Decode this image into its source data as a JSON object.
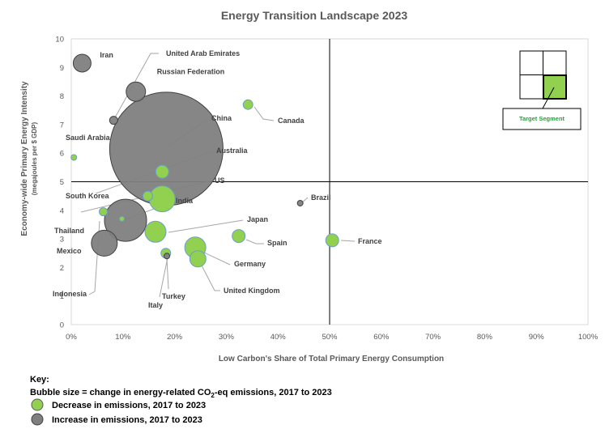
{
  "chart_data": {
    "type": "scatter",
    "title": "Energy Transition Landscape 2023",
    "xlabel": "Low Carbon's Share of Total Primary Energy Consumption",
    "ylabel": "Economy-wide Primary Energy Intensity",
    "ylabel_sub": "(megajoules per $ GDP)",
    "xlim": [
      0,
      100
    ],
    "ylim": [
      0,
      10
    ],
    "x_ticks": [
      "0%",
      "10%",
      "20%",
      "30%",
      "40%",
      "50%",
      "60%",
      "70%",
      "80%",
      "90%",
      "100%"
    ],
    "y_ticks": [
      "0",
      "1",
      "2",
      "3",
      "4",
      "5",
      "6",
      "7",
      "8",
      "9",
      "10"
    ],
    "grid": false,
    "reference_lines": {
      "x": 50,
      "y": 5
    },
    "colors": {
      "decrease": "#92d050",
      "increase": "#7f7f7f"
    },
    "points": [
      {
        "name": "Iran",
        "x": 2.1,
        "y": 9.15,
        "size": 11,
        "trend": "increase"
      },
      {
        "name": "Russian Federation",
        "x": 12.5,
        "y": 8.15,
        "size": 12,
        "trend": "increase"
      },
      {
        "name": "United Arab Emirates",
        "x": 8.2,
        "y": 7.15,
        "size": 5,
        "trend": "increase"
      },
      {
        "name": "Canada",
        "x": 34.2,
        "y": 7.7,
        "size": 6,
        "trend": "decrease"
      },
      {
        "name": "Saudi Arabia",
        "x": 0.5,
        "y": 5.85,
        "size": 3.5,
        "trend": "decrease"
      },
      {
        "name": "China",
        "x": 18.4,
        "y": 6.15,
        "size": 70,
        "trend": "increase"
      },
      {
        "name": "Australia",
        "x": 17.6,
        "y": 5.35,
        "size": 8,
        "trend": "decrease"
      },
      {
        "name": "US",
        "x": 17.6,
        "y": 4.4,
        "size": 16,
        "trend": "decrease"
      },
      {
        "name": "South Korea",
        "x": 14.8,
        "y": 4.5,
        "size": 6,
        "trend": "decrease"
      },
      {
        "name": "Brazil",
        "x": 44.3,
        "y": 4.25,
        "size": 3.5,
        "trend": "increase"
      },
      {
        "name": "Thailand",
        "x": 6.2,
        "y": 3.95,
        "size": 5,
        "trend": "decrease"
      },
      {
        "name": "India",
        "x": 10.5,
        "y": 3.65,
        "size": 26,
        "trend": "increase"
      },
      {
        "name": "Japan",
        "x": 16.3,
        "y": 3.25,
        "size": 13,
        "trend": "decrease"
      },
      {
        "name": "Mexico",
        "x": 6.4,
        "y": 2.85,
        "size": 16,
        "trend": "increase"
      },
      {
        "name": "Spain",
        "x": 32.4,
        "y": 3.1,
        "size": 8,
        "trend": "decrease"
      },
      {
        "name": "France",
        "x": 50.5,
        "y": 2.95,
        "size": 8,
        "trend": "decrease"
      },
      {
        "name": "Germany",
        "x": 24.0,
        "y": 2.7,
        "size": 13,
        "trend": "decrease"
      },
      {
        "name": "United Kingdom",
        "x": 24.5,
        "y": 2.3,
        "size": 10,
        "trend": "decrease"
      },
      {
        "name": "Turkey",
        "x": 18.3,
        "y": 2.5,
        "size": 6,
        "trend": "decrease"
      },
      {
        "name": "Italy",
        "x": 18.5,
        "y": 2.4,
        "size": 3.5,
        "trend": "increase"
      },
      {
        "name": "Indonesia",
        "x": 9.8,
        "y": 3.7,
        "size": 3,
        "trend": "decrease"
      }
    ]
  },
  "target_segment_label": "Target Segment",
  "legend": {
    "key_label": "Key:",
    "size_note_prefix": "Bubble size = change in energy-related CO",
    "size_note_sub": "2",
    "size_note_suffix": "-eq emissions, 2017 to 2023",
    "items": [
      {
        "label": "Decrease in emissions, 2017 to 2023",
        "color": "#92d050"
      },
      {
        "label": "Increase in emissions, 2017 to 2023",
        "color": "#7f7f7f"
      }
    ]
  }
}
